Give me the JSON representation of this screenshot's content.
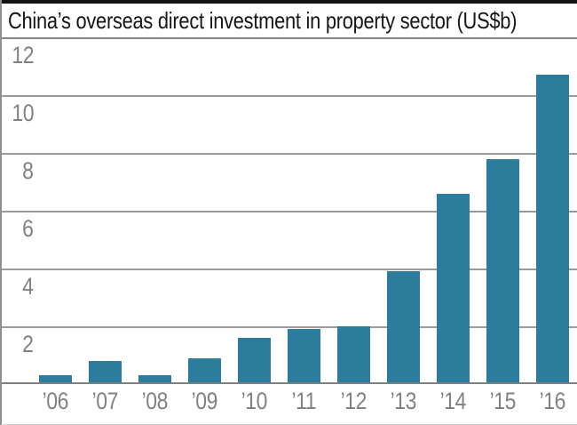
{
  "title": "China’s overseas direct investment in property sector (US$b)",
  "colors": {
    "bar": "#2c7d9c",
    "gridline": "#9b9b9b",
    "baseline": "#7f7f7f",
    "tick_label": "#818181",
    "title_text": "#161616",
    "top_accent_bar": "#121212",
    "background": "#ffffff"
  },
  "chart_data": {
    "type": "bar",
    "title": "China’s overseas direct investment in property sector (US$b)",
    "categories": [
      "’06",
      "’07",
      "’08",
      "’09",
      "’10",
      "’11",
      "’12",
      "’13",
      "’14",
      "’15",
      "’16"
    ],
    "values": [
      0.3,
      0.8,
      0.3,
      0.9,
      1.6,
      1.9,
      2.0,
      3.9,
      6.6,
      7.8,
      10.7
    ],
    "xlabel": "",
    "ylabel": "",
    "ylim": [
      0,
      12
    ],
    "yticks": [
      2,
      4,
      6,
      8,
      10,
      12
    ],
    "grid": true,
    "legend": false,
    "legend_position": "none",
    "bar_color": "#2c7d9c"
  }
}
